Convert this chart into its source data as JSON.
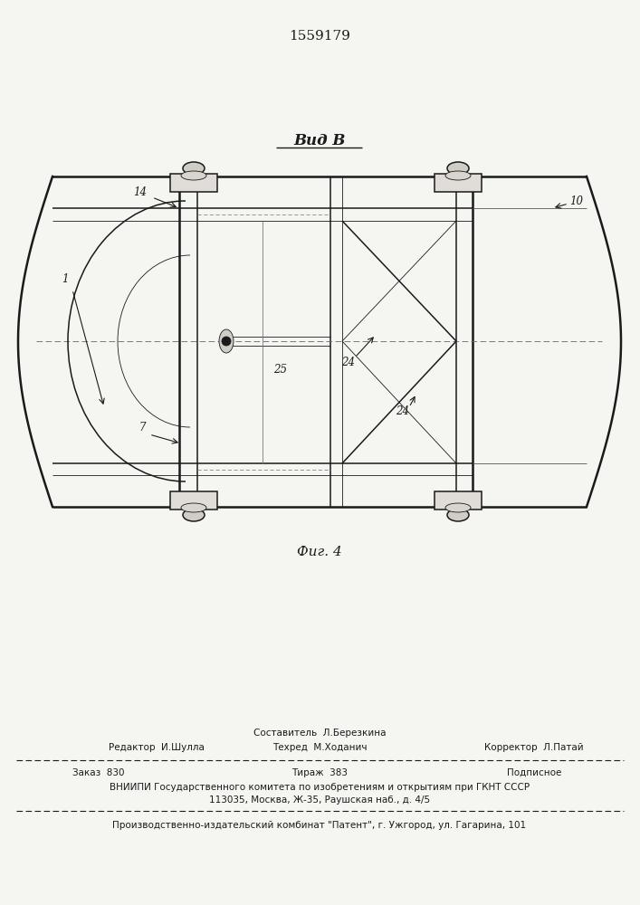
{
  "patent_number": "1559179",
  "title_view": "Вид В",
  "fig_label": "Фиг. 4",
  "bg_color": "#f5f5f2",
  "line_color": "#1a1a1a",
  "footer": {
    "col1_line1": "",
    "col2_line1": "Составитель  Л.Березкина",
    "col3_line1": "",
    "col1_line2": "Редактор  И.Шулла",
    "col2_line2": "Техред  М.Ходанич",
    "col3_line2": "Корректор  Л.Патай",
    "zakas": "Заказ  830",
    "tiraz": "Тираж  383",
    "podp": "Подписное",
    "vniip1": "ВНИИПИ Государственного комитета по изобретениям и открытиям при ГКНТ СССР",
    "vniip2": "113035, Москва, Ж-35, Раушская наб., д. 4/5",
    "patent_line": "Производственно-издательский комбинат \"Патент\", г. Ужгород, ул. Гагарина, 101"
  }
}
